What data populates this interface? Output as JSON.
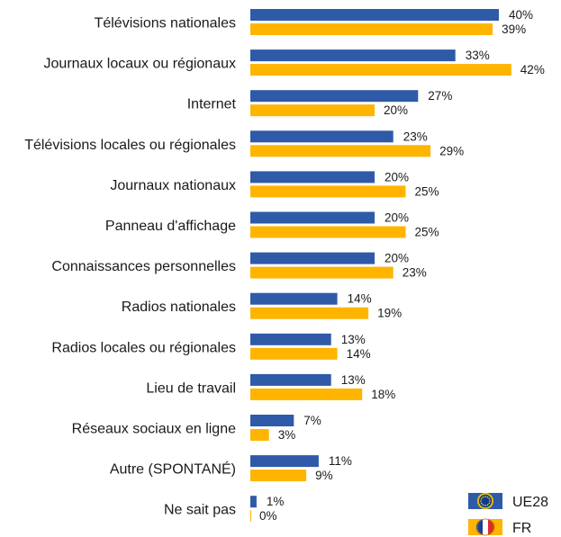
{
  "chart_data": {
    "type": "bar",
    "orientation": "horizontal",
    "title": "",
    "xlabel": "",
    "ylabel": "",
    "xlim": [
      0,
      42
    ],
    "grid": false,
    "legend_position": "bottom-right",
    "value_suffix": "%",
    "categories": [
      "Télévisions nationales",
      "Journaux locaux ou régionaux",
      "Internet",
      "Télévisions locales ou régionales",
      "Journaux nationaux",
      "Panneau d'affichage",
      "Connaissances personnelles",
      "Radios nationales",
      "Radios locales ou régionales",
      "Lieu de travail",
      "Réseaux sociaux en ligne",
      "Autre (SPONTANÉ)",
      "Ne sait pas"
    ],
    "series": [
      {
        "name": "UE28",
        "color": "#2e5aa8",
        "icon": "eu-flag-icon",
        "values": [
          40,
          33,
          27,
          23,
          20,
          20,
          20,
          14,
          13,
          13,
          7,
          11,
          1
        ]
      },
      {
        "name": "FR",
        "color": "#ffb400",
        "icon": "france-flag-icon",
        "values": [
          39,
          42,
          20,
          29,
          25,
          25,
          23,
          19,
          14,
          18,
          3,
          9,
          0
        ]
      }
    ]
  }
}
